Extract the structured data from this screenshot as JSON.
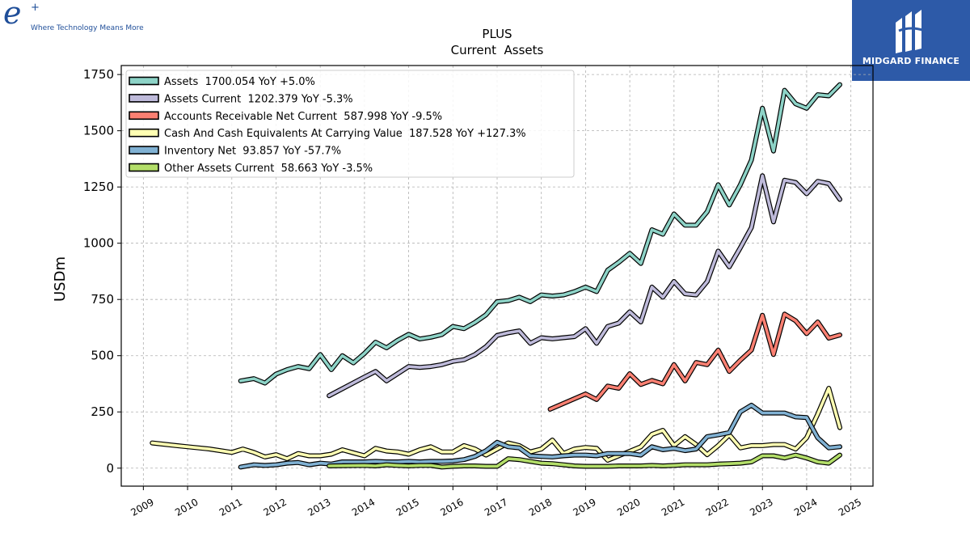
{
  "logo_left": {
    "mark": "e",
    "plus": "+",
    "tagline": "Where Technology Means More"
  },
  "logo_right": {
    "name": "MIDGARD FINANCE",
    "icon": "midgard-logo-icon"
  },
  "chart_data": {
    "type": "line",
    "title": "PLUS",
    "subtitle": "Current  Assets",
    "ylabel": "USDm",
    "xlabel": "",
    "xlim": [
      2008.5,
      2025.5
    ],
    "ylim": [
      -80,
      1790
    ],
    "yticks": [
      0,
      250,
      500,
      750,
      1000,
      1250,
      1500,
      1750
    ],
    "xticks": [
      "2009",
      "2010",
      "2011",
      "2012",
      "2013",
      "2014",
      "2015",
      "2016",
      "2017",
      "2018",
      "2019",
      "2020",
      "2021",
      "2022",
      "2023",
      "2024",
      "2025"
    ],
    "grid": true,
    "legend_position": "top-left",
    "series": [
      {
        "name": "Assets  1700.054 YoY +5.0%",
        "color": "#8dd3c7",
        "points": [
          [
            2011.2,
            388
          ],
          [
            2011.5,
            398
          ],
          [
            2011.75,
            378
          ],
          [
            2012,
            418
          ],
          [
            2012.25,
            438
          ],
          [
            2012.5,
            452
          ],
          [
            2012.75,
            442
          ],
          [
            2013,
            505
          ],
          [
            2013.25,
            438
          ],
          [
            2013.5,
            500
          ],
          [
            2013.75,
            468
          ],
          [
            2014,
            510
          ],
          [
            2014.25,
            560
          ],
          [
            2014.5,
            535
          ],
          [
            2014.75,
            568
          ],
          [
            2015,
            595
          ],
          [
            2015.25,
            574
          ],
          [
            2015.5,
            582
          ],
          [
            2015.75,
            594
          ],
          [
            2016,
            630
          ],
          [
            2016.25,
            620
          ],
          [
            2016.5,
            648
          ],
          [
            2016.75,
            682
          ],
          [
            2017,
            740
          ],
          [
            2017.25,
            745
          ],
          [
            2017.5,
            760
          ],
          [
            2017.75,
            740
          ],
          [
            2018,
            770
          ],
          [
            2018.25,
            765
          ],
          [
            2018.5,
            770
          ],
          [
            2018.75,
            785
          ],
          [
            2019,
            805
          ],
          [
            2019.25,
            785
          ],
          [
            2019.5,
            880
          ],
          [
            2019.75,
            915
          ],
          [
            2020,
            955
          ],
          [
            2020.25,
            910
          ],
          [
            2020.5,
            1060
          ],
          [
            2020.75,
            1040
          ],
          [
            2021,
            1130
          ],
          [
            2021.25,
            1080
          ],
          [
            2021.5,
            1080
          ],
          [
            2021.75,
            1140
          ],
          [
            2022,
            1260
          ],
          [
            2022.25,
            1170
          ],
          [
            2022.5,
            1260
          ],
          [
            2022.75,
            1370
          ],
          [
            2023,
            1600
          ],
          [
            2023.25,
            1410
          ],
          [
            2023.5,
            1680
          ],
          [
            2023.75,
            1620
          ],
          [
            2024,
            1600
          ],
          [
            2024.25,
            1660
          ],
          [
            2024.5,
            1655
          ],
          [
            2024.75,
            1705
          ]
        ]
      },
      {
        "name": "Assets Current  1202.379 YoY -5.3%",
        "color": "#bebada",
        "points": [
          [
            2013.2,
            322
          ],
          [
            2014,
            405
          ],
          [
            2014.25,
            430
          ],
          [
            2014.5,
            388
          ],
          [
            2014.75,
            420
          ],
          [
            2015,
            452
          ],
          [
            2015.25,
            448
          ],
          [
            2015.5,
            452
          ],
          [
            2015.75,
            460
          ],
          [
            2016,
            475
          ],
          [
            2016.25,
            482
          ],
          [
            2016.5,
            505
          ],
          [
            2016.75,
            540
          ],
          [
            2017,
            590
          ],
          [
            2017.25,
            602
          ],
          [
            2017.5,
            610
          ],
          [
            2017.75,
            555
          ],
          [
            2018,
            580
          ],
          [
            2018.25,
            575
          ],
          [
            2018.5,
            580
          ],
          [
            2018.75,
            585
          ],
          [
            2019,
            620
          ],
          [
            2019.25,
            555
          ],
          [
            2019.5,
            630
          ],
          [
            2019.75,
            645
          ],
          [
            2020,
            695
          ],
          [
            2020.25,
            650
          ],
          [
            2020.5,
            805
          ],
          [
            2020.75,
            760
          ],
          [
            2021,
            830
          ],
          [
            2021.25,
            775
          ],
          [
            2021.5,
            770
          ],
          [
            2021.75,
            830
          ],
          [
            2022,
            965
          ],
          [
            2022.25,
            895
          ],
          [
            2022.5,
            980
          ],
          [
            2022.75,
            1070
          ],
          [
            2023,
            1300
          ],
          [
            2023.25,
            1095
          ],
          [
            2023.5,
            1280
          ],
          [
            2023.75,
            1270
          ],
          [
            2024,
            1220
          ],
          [
            2024.25,
            1275
          ],
          [
            2024.5,
            1265
          ],
          [
            2024.75,
            1195
          ]
        ]
      },
      {
        "name": "Accounts Receivable Net Current  587.998 YoY -9.5%",
        "color": "#fb8072",
        "points": [
          [
            2018.2,
            262
          ],
          [
            2019,
            330
          ],
          [
            2019.25,
            305
          ],
          [
            2019.5,
            365
          ],
          [
            2019.75,
            355
          ],
          [
            2020,
            420
          ],
          [
            2020.25,
            372
          ],
          [
            2020.5,
            390
          ],
          [
            2020.75,
            375
          ],
          [
            2021,
            460
          ],
          [
            2021.25,
            388
          ],
          [
            2021.5,
            470
          ],
          [
            2021.75,
            460
          ],
          [
            2022,
            525
          ],
          [
            2022.25,
            430
          ],
          [
            2022.5,
            480
          ],
          [
            2022.75,
            525
          ],
          [
            2023,
            680
          ],
          [
            2023.25,
            505
          ],
          [
            2023.5,
            685
          ],
          [
            2023.75,
            655
          ],
          [
            2024,
            598
          ],
          [
            2024.25,
            650
          ],
          [
            2024.5,
            578
          ],
          [
            2024.75,
            592
          ]
        ]
      },
      {
        "name": "Cash And Cash Equivalents At Carrying Value  187.528 YoY +127.3%",
        "color": "#ffffb3",
        "points": [
          [
            2009.2,
            112
          ],
          [
            2009.75,
            100
          ],
          [
            2010,
            95
          ],
          [
            2010.5,
            85
          ],
          [
            2011,
            70
          ],
          [
            2011.25,
            85
          ],
          [
            2011.5,
            70
          ],
          [
            2011.75,
            50
          ],
          [
            2012,
            60
          ],
          [
            2012.25,
            42
          ],
          [
            2012.5,
            65
          ],
          [
            2012.75,
            55
          ],
          [
            2013,
            55
          ],
          [
            2013.25,
            62
          ],
          [
            2013.5,
            82
          ],
          [
            2013.75,
            68
          ],
          [
            2014,
            55
          ],
          [
            2014.25,
            88
          ],
          [
            2014.5,
            76
          ],
          [
            2014.75,
            72
          ],
          [
            2015,
            62
          ],
          [
            2015.25,
            82
          ],
          [
            2015.5,
            95
          ],
          [
            2015.75,
            72
          ],
          [
            2016,
            72
          ],
          [
            2016.25,
            100
          ],
          [
            2016.5,
            85
          ],
          [
            2016.75,
            58
          ],
          [
            2017,
            85
          ],
          [
            2017.25,
            112
          ],
          [
            2017.5,
            100
          ],
          [
            2017.75,
            72
          ],
          [
            2018,
            85
          ],
          [
            2018.25,
            125
          ],
          [
            2018.5,
            65
          ],
          [
            2018.75,
            85
          ],
          [
            2019,
            92
          ],
          [
            2019.25,
            88
          ],
          [
            2019.5,
            35
          ],
          [
            2019.75,
            55
          ],
          [
            2020,
            75
          ],
          [
            2020.25,
            95
          ],
          [
            2020.5,
            150
          ],
          [
            2020.75,
            168
          ],
          [
            2021,
            100
          ],
          [
            2021.25,
            140
          ],
          [
            2021.5,
            105
          ],
          [
            2021.75,
            60
          ],
          [
            2022,
            100
          ],
          [
            2022.25,
            148
          ],
          [
            2022.5,
            90
          ],
          [
            2022.75,
            100
          ],
          [
            2023,
            100
          ],
          [
            2023.25,
            105
          ],
          [
            2023.5,
            105
          ],
          [
            2023.75,
            85
          ],
          [
            2024,
            135
          ],
          [
            2024.25,
            240
          ],
          [
            2024.5,
            355
          ],
          [
            2024.75,
            180
          ]
        ]
      },
      {
        "name": "Inventory Net  93.857 YoY -57.7%",
        "color": "#80b1d3",
        "points": [
          [
            2011.2,
            5
          ],
          [
            2011.5,
            15
          ],
          [
            2011.75,
            12
          ],
          [
            2012,
            15
          ],
          [
            2012.25,
            22
          ],
          [
            2012.5,
            25
          ],
          [
            2012.75,
            15
          ],
          [
            2013,
            22
          ],
          [
            2013.25,
            18
          ],
          [
            2013.5,
            28
          ],
          [
            2013.75,
            28
          ],
          [
            2014,
            28
          ],
          [
            2014.25,
            30
          ],
          [
            2014.5,
            28
          ],
          [
            2014.75,
            28
          ],
          [
            2015,
            30
          ],
          [
            2015.25,
            28
          ],
          [
            2015.5,
            30
          ],
          [
            2015.75,
            30
          ],
          [
            2016,
            32
          ],
          [
            2016.25,
            38
          ],
          [
            2016.5,
            52
          ],
          [
            2016.75,
            78
          ],
          [
            2017,
            115
          ],
          [
            2017.25,
            95
          ],
          [
            2017.5,
            90
          ],
          [
            2017.75,
            55
          ],
          [
            2018,
            52
          ],
          [
            2018.25,
            50
          ],
          [
            2018.5,
            55
          ],
          [
            2018.75,
            58
          ],
          [
            2019,
            58
          ],
          [
            2019.25,
            55
          ],
          [
            2019.5,
            65
          ],
          [
            2019.75,
            65
          ],
          [
            2020,
            65
          ],
          [
            2020.25,
            58
          ],
          [
            2020.5,
            95
          ],
          [
            2020.75,
            82
          ],
          [
            2021,
            88
          ],
          [
            2021.25,
            78
          ],
          [
            2021.5,
            85
          ],
          [
            2021.75,
            140
          ],
          [
            2022,
            148
          ],
          [
            2022.25,
            158
          ],
          [
            2022.5,
            250
          ],
          [
            2022.75,
            280
          ],
          [
            2023,
            245
          ],
          [
            2023.25,
            245
          ],
          [
            2023.5,
            245
          ],
          [
            2023.75,
            228
          ],
          [
            2024,
            225
          ],
          [
            2024.25,
            135
          ],
          [
            2024.5,
            90
          ],
          [
            2024.75,
            95
          ]
        ]
      },
      {
        "name": "Other Assets Current  58.663 YoY -3.5%",
        "color": "#b3de69",
        "points": [
          [
            2013.2,
            10
          ],
          [
            2014,
            12
          ],
          [
            2014.25,
            10
          ],
          [
            2014.5,
            15
          ],
          [
            2014.75,
            12
          ],
          [
            2015,
            10
          ],
          [
            2015.25,
            12
          ],
          [
            2015.5,
            12
          ],
          [
            2015.75,
            5
          ],
          [
            2016,
            8
          ],
          [
            2016.25,
            10
          ],
          [
            2016.5,
            10
          ],
          [
            2016.75,
            8
          ],
          [
            2017,
            8
          ],
          [
            2017.25,
            42
          ],
          [
            2017.5,
            38
          ],
          [
            2017.75,
            30
          ],
          [
            2018,
            22
          ],
          [
            2018.25,
            20
          ],
          [
            2018.5,
            15
          ],
          [
            2018.75,
            10
          ],
          [
            2019,
            8
          ],
          [
            2019.25,
            8
          ],
          [
            2019.5,
            8
          ],
          [
            2019.75,
            10
          ],
          [
            2020,
            10
          ],
          [
            2020.25,
            10
          ],
          [
            2020.5,
            12
          ],
          [
            2020.75,
            10
          ],
          [
            2021,
            12
          ],
          [
            2021.25,
            15
          ],
          [
            2021.5,
            15
          ],
          [
            2021.75,
            15
          ],
          [
            2022,
            18
          ],
          [
            2022.25,
            20
          ],
          [
            2022.5,
            22
          ],
          [
            2022.75,
            28
          ],
          [
            2023,
            55
          ],
          [
            2023.25,
            55
          ],
          [
            2023.5,
            45
          ],
          [
            2023.75,
            58
          ],
          [
            2024,
            45
          ],
          [
            2024.25,
            28
          ],
          [
            2024.5,
            22
          ],
          [
            2024.75,
            58
          ]
        ]
      }
    ]
  }
}
